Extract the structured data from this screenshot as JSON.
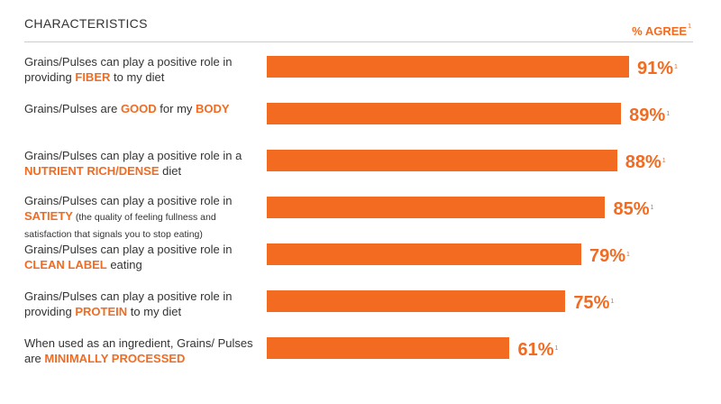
{
  "header": {
    "title": "CHARACTERISTICS",
    "agree_label": "% AGREE",
    "footnote": "1"
  },
  "colors": {
    "accent": "#f26b21",
    "text": "#333333"
  },
  "chart_data": {
    "type": "bar",
    "orientation": "horizontal",
    "value_suffix": "%",
    "footnote_mark": "1",
    "xlim": [
      0,
      100
    ],
    "categories": [
      {
        "parts": [
          {
            "t": "Grains/Pulses can play a positive role in providing "
          },
          {
            "t": "FIBER",
            "hl": true
          },
          {
            "t": " to my diet"
          }
        ]
      },
      {
        "parts": [
          {
            "t": "Grains/Pulses are "
          },
          {
            "t": "GOOD",
            "hl": true
          },
          {
            "t": " for my "
          },
          {
            "t": "BODY",
            "hl": true
          }
        ]
      },
      {
        "parts": [
          {
            "t": "Grains/Pulses can play a positive role in a "
          },
          {
            "t": "NUTRIENT RICH/DENSE",
            "hl": true
          },
          {
            "t": " diet"
          }
        ]
      },
      {
        "parts": [
          {
            "t": "Grains/Pulses can play a positive role in "
          },
          {
            "t": "SATIETY",
            "hl": true
          },
          {
            "t": " (the quality of feeling fullness and satisfaction that signals you to stop eating)",
            "small": true
          }
        ]
      },
      {
        "parts": [
          {
            "t": "Grains/Pulses can play a positive role in "
          },
          {
            "t": "CLEAN LABEL",
            "hl": true
          },
          {
            "t": " eating"
          }
        ]
      },
      {
        "parts": [
          {
            "t": "Grains/Pulses can play a positive role in providing "
          },
          {
            "t": "PROTEIN",
            "hl": true
          },
          {
            "t": " to my diet"
          }
        ]
      },
      {
        "parts": [
          {
            "t": "When used as an ingredient, Grains/ Pulses are "
          },
          {
            "t": "MINIMALLY PROCESSED",
            "hl": true
          }
        ]
      }
    ],
    "values": [
      91,
      89,
      88,
      85,
      79,
      75,
      61
    ]
  }
}
